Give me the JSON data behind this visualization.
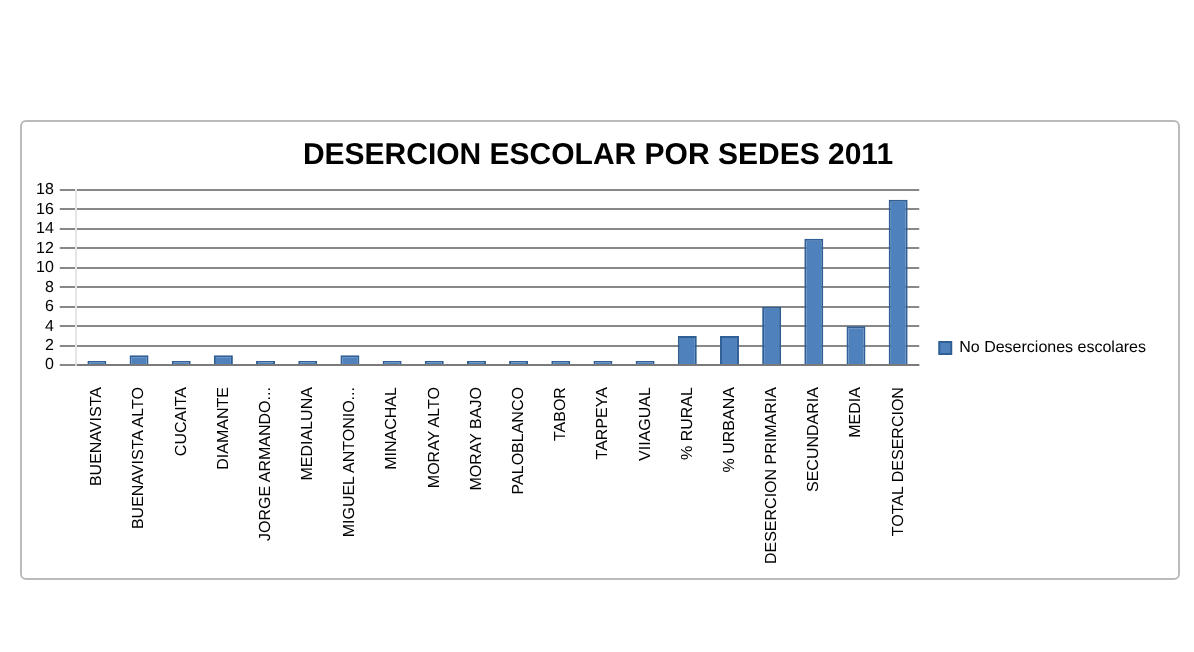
{
  "chart_data": {
    "type": "bar",
    "title": "DESERCION ESCOLAR POR SEDES 2011",
    "categories": [
      "BUENAVISTA",
      "BUENAVISTA ALTO",
      "CUCAITA",
      "DIAMANTE",
      "JORGE ARMANDO...",
      "MEDIALUNA",
      "MIGUEL ANTONIO...",
      "MINACHAL",
      "MORAY ALTO",
      "MORAY BAJO",
      "PALOBLANCO",
      "TABOR",
      "TARPEYA",
      "VIIAGUAL",
      "% RURAL",
      "% URBANA",
      "DESERCION PRIMARIA",
      "SECUNDARIA",
      "MEDIA",
      "TOTAL DESERCION"
    ],
    "series": [
      {
        "name": "No Deserciones escolares",
        "color": "#4f81bd",
        "values": [
          0,
          1,
          0,
          1,
          0,
          0,
          1,
          0,
          0,
          0,
          0,
          0,
          0,
          0,
          3,
          3,
          6,
          13,
          4,
          17
        ]
      }
    ],
    "ylim": [
      0,
      18
    ],
    "yticks": [
      0,
      2,
      4,
      6,
      8,
      10,
      12,
      14,
      16,
      18
    ],
    "grid": "y",
    "legend": "right"
  }
}
